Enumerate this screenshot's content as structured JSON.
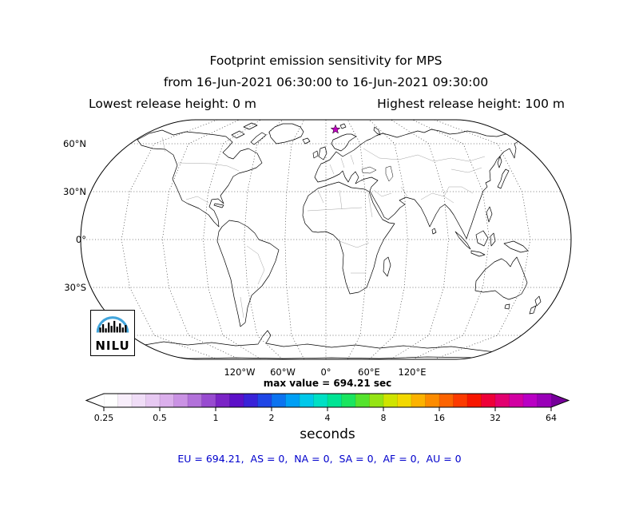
{
  "title": {
    "line1": "Footprint emission sensitivity for MPS",
    "line2": "from 16-Jun-2021 06:30:00 to 16-Jun-2021 09:30:00",
    "line3_left": "Lowest release height: 0 m",
    "line3_right": "Highest release height: 100 m"
  },
  "map": {
    "lat_labels": [
      "60°N",
      "30°N",
      "0°",
      "30°S"
    ],
    "lon_labels": [
      "120°W",
      "60°W",
      "0°",
      "60°E",
      "120°E"
    ],
    "marker": {
      "symbol": "star",
      "color": "#c000c0"
    },
    "logo_text": "NILU",
    "logo_arc_color": "#42a5dc"
  },
  "max_value_label": "max value = 694.21 sec",
  "colorbar": {
    "tick_labels": [
      "0.25",
      "0.5",
      "1",
      "2",
      "4",
      "8",
      "16",
      "32",
      "64"
    ],
    "unit_label": "seconds",
    "left_arrow_color": "#ffffff",
    "right_arrow_color": "#76009a",
    "segment_colors": [
      "#ffffff",
      "#f8eefb",
      "#f0ddf7",
      "#e7c9f2",
      "#dbafec",
      "#ca92e4",
      "#b271da",
      "#984bd0",
      "#7b24c6",
      "#5c10c8",
      "#3922d8",
      "#1f46e6",
      "#0c73f0",
      "#009ff5",
      "#00c8ea",
      "#00e0c4",
      "#00e494",
      "#1ae55f",
      "#55e32d",
      "#95e414",
      "#cfe400",
      "#f2d800",
      "#fcb200",
      "#fc8b00",
      "#fc6300",
      "#fc3a00",
      "#f71600",
      "#ee0038",
      "#e2006f",
      "#d200a2",
      "#b900c4",
      "#9900b8"
    ]
  },
  "footer": {
    "text": "EU = 694.21,  AS = 0,  NA = 0,  SA = 0,  AF = 0,  AU = 0",
    "color": "#0000cc"
  },
  "chart_data": {
    "type": "heatmap",
    "title": "Footprint emission sensitivity for MPS",
    "time_from": "16-Jun-2021 06:30:00",
    "time_to": "16-Jun-2021 09:30:00",
    "lowest_release_height_m": 0,
    "highest_release_height_m": 100,
    "max_value_sec": 694.21,
    "units": "seconds",
    "colorbar_scale_sec": [
      0.25,
      0.5,
      1,
      2,
      4,
      8,
      16,
      32,
      64
    ],
    "colorbar_extends": "both",
    "region_totals_sec": {
      "EU": 694.21,
      "AS": 0,
      "NA": 0,
      "SA": 0,
      "AF": 0,
      "AU": 0
    },
    "release_marker": {
      "symbol": "star",
      "approx_lat": 78,
      "approx_lon": 12
    },
    "projection": "robinson-like world map",
    "graticule": {
      "parallels_deg": [
        -60,
        -30,
        0,
        30,
        60
      ],
      "meridians_deg_step": 30,
      "style": "dotted"
    }
  }
}
